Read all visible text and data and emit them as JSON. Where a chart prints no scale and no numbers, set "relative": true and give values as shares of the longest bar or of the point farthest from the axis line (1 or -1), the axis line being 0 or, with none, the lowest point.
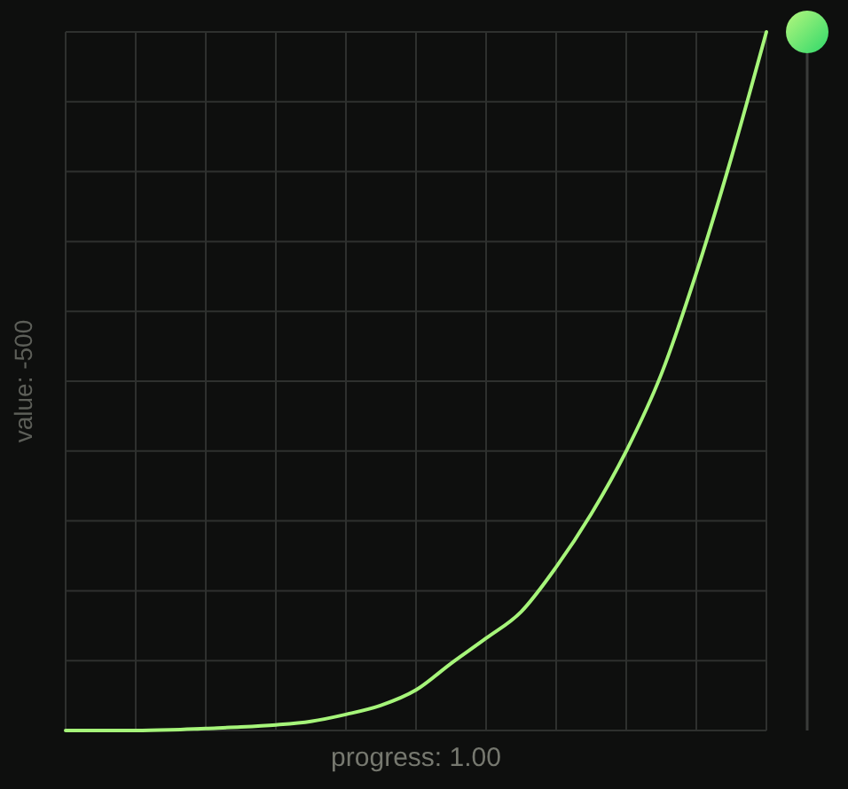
{
  "chart_data": {
    "type": "line",
    "xlabel": "progress: 1.00",
    "ylabel": "value: -500",
    "relative": true,
    "grid": true,
    "categories": [
      null,
      null,
      null,
      null,
      null,
      null,
      null,
      null,
      null,
      null,
      null,
      null,
      null,
      null,
      null,
      null,
      null,
      null,
      null,
      null,
      null
    ],
    "series": [
      {
        "color": "#a6f57a",
        "values": [
          0,
          0,
          0,
          0.001,
          0.003,
          0.005,
          0.008,
          0.013,
          0.023,
          0.036,
          0.058,
          0.096,
          0.132,
          0.17,
          0.234,
          0.31,
          0.4,
          0.51,
          0.655,
          0.82,
          1
        ]
      }
    ]
  }
}
